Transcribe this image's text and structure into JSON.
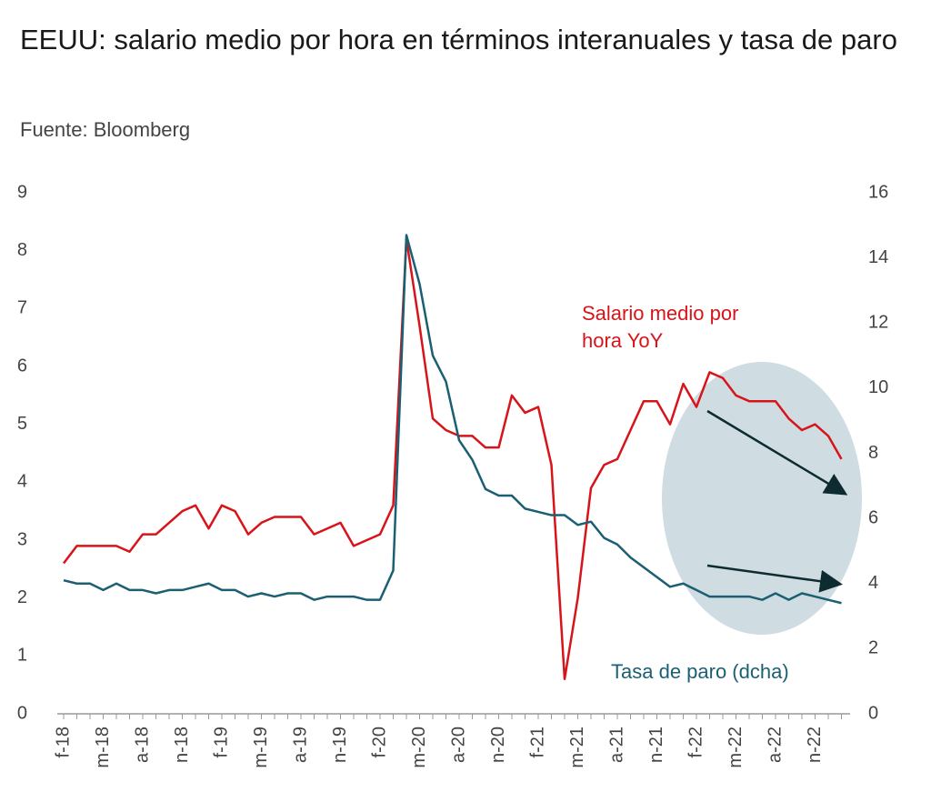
{
  "chart_data": {
    "type": "line",
    "title": "EEUU: salario medio por hora en términos interanuales y tasa de paro",
    "subtitle": "Fuente: Bloomberg",
    "categories": [
      "f-18",
      null,
      null,
      "m-18",
      null,
      null,
      "a-18",
      null,
      null,
      "n-18",
      null,
      null,
      "f-19",
      null,
      null,
      "m-19",
      null,
      null,
      "a-19",
      null,
      null,
      "n-19",
      null,
      null,
      "f-20",
      null,
      null,
      "m-20",
      null,
      null,
      "a-20",
      null,
      null,
      "n-20",
      null,
      null,
      "f-21",
      null,
      null,
      "m-21",
      null,
      null,
      "a-21",
      null,
      null,
      "n-21",
      null,
      null,
      "f-22",
      null,
      null,
      "m-22",
      null,
      null,
      "a-22",
      null,
      null,
      "n-22",
      null,
      null
    ],
    "series": [
      {
        "name": "Salario medio por hora YoY",
        "color": "#d7141a",
        "axis": "y",
        "values": [
          2.6,
          2.9,
          2.9,
          2.9,
          2.9,
          2.8,
          3.1,
          3.1,
          3.3,
          3.5,
          3.6,
          3.2,
          3.6,
          3.5,
          3.1,
          3.3,
          3.4,
          3.4,
          3.4,
          3.1,
          3.2,
          3.3,
          2.9,
          3.0,
          3.1,
          3.6,
          8.2,
          6.7,
          5.1,
          4.9,
          4.8,
          4.8,
          4.6,
          4.6,
          5.5,
          5.2,
          5.3,
          4.3,
          0.6,
          2.0,
          3.9,
          4.3,
          4.4,
          4.9,
          5.4,
          5.4,
          5.0,
          5.7,
          5.3,
          5.9,
          5.8,
          5.5,
          5.4,
          5.4,
          5.4,
          5.1,
          4.9,
          5.0,
          4.8,
          4.4
        ]
      },
      {
        "name": "Tasa de paro (dcha)",
        "color": "#1b5f73",
        "axis": "y2",
        "values": [
          4.1,
          4.0,
          4.0,
          3.8,
          4.0,
          3.8,
          3.8,
          3.7,
          3.8,
          3.8,
          3.9,
          4.0,
          3.8,
          3.8,
          3.6,
          3.7,
          3.6,
          3.7,
          3.7,
          3.5,
          3.6,
          3.6,
          3.6,
          3.5,
          3.5,
          4.4,
          14.7,
          13.2,
          11.0,
          10.2,
          8.4,
          7.8,
          6.9,
          6.7,
          6.7,
          6.3,
          6.2,
          6.1,
          6.1,
          5.8,
          5.9,
          5.4,
          5.2,
          4.8,
          4.5,
          4.2,
          3.9,
          4.0,
          3.8,
          3.6,
          3.6,
          3.6,
          3.6,
          3.5,
          3.7,
          3.5,
          3.7,
          3.6,
          3.5,
          3.4
        ]
      }
    ],
    "ylim": [
      0,
      9
    ],
    "yticks": [
      0,
      1,
      2,
      3,
      4,
      5,
      6,
      7,
      8,
      9
    ],
    "y2lim": [
      0,
      16
    ],
    "y2ticks": [
      0,
      2,
      4,
      6,
      8,
      10,
      12,
      14,
      16
    ]
  }
}
